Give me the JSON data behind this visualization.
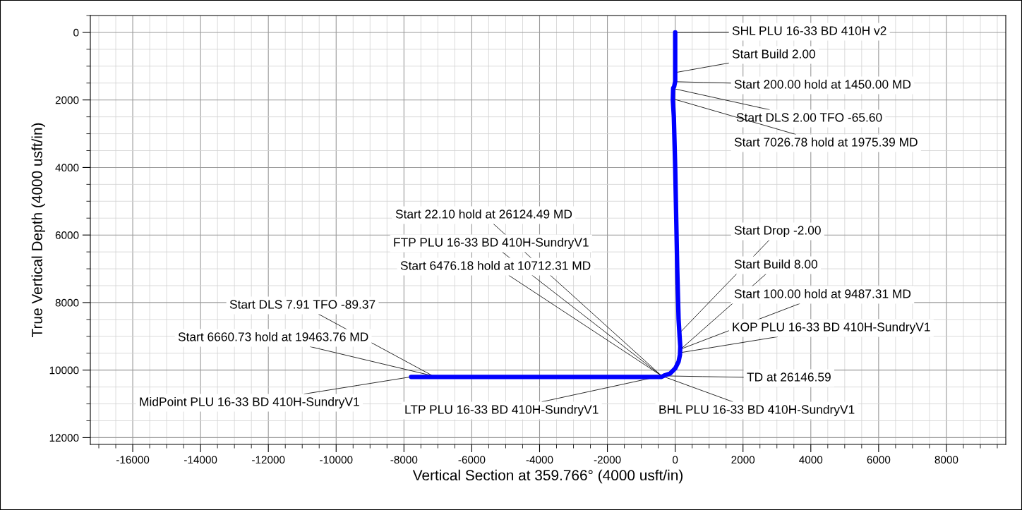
{
  "chart_data": {
    "type": "line",
    "xlabel": "Vertical Section at 359.766° (4000 usft/in)",
    "ylabel": "True Vertical Depth (4000 usft/in)",
    "xlim": [
      -17250,
      9750
    ],
    "ylim": [
      12200,
      -500
    ],
    "xticks": [
      -16000,
      -14000,
      -12000,
      -10000,
      -8000,
      -6000,
      -4000,
      -2000,
      0,
      2000,
      4000,
      6000,
      8000
    ],
    "yticks": [
      0,
      2000,
      4000,
      6000,
      8000,
      10000,
      12000
    ],
    "grid": true,
    "marker": "none",
    "line_style": "solid",
    "series": [
      {
        "color": "#0000ff",
        "x": [
          0,
          0,
          -30,
          -60,
          -70,
          -40,
          0,
          60,
          100,
          130,
          150,
          140,
          100,
          0,
          -150,
          -300,
          -400,
          -2000,
          -7790
        ],
        "values": [
          0,
          1450,
          1600,
          1650,
          2000,
          2500,
          4000,
          7000,
          8500,
          9000,
          9300,
          9550,
          9750,
          9950,
          10100,
          10150,
          10200,
          10200,
          10200
        ]
      }
    ],
    "annotations": [
      {
        "text": "SHL PLU 16-33 BD 410H v2",
        "x": 0,
        "y": 0
      },
      {
        "text": "Start Build 2.00",
        "x": 0,
        "y": 1190
      },
      {
        "text": "Start 200.00 hold at 1450.00 MD",
        "x": 0,
        "y": 1460
      },
      {
        "text": "Start DLS 2.00 TFO -65.60",
        "x": -20,
        "y": 1670
      },
      {
        "text": "Start 7026.78 hold at 1975.39 MD",
        "x": -20,
        "y": 1980
      },
      {
        "text": "Start 22.10 hold at 26124.49 MD",
        "x": -400,
        "y": 10170
      },
      {
        "text": "FTP PLU 16-33 BD 410H-SundryV1",
        "x": -400,
        "y": 10170
      },
      {
        "text": "Start 6476.18 hold at 10712.31 MD",
        "x": -400,
        "y": 10170
      },
      {
        "text": "Start Drop -2.00",
        "x": 130,
        "y": 8900
      },
      {
        "text": "Start Build 8.00",
        "x": 170,
        "y": 9375
      },
      {
        "text": "Start 100.00 hold at 9487.31 MD",
        "x": 170,
        "y": 9375
      },
      {
        "text": "KOP PLU 16-33 BD 410H-SundryV1",
        "x": 170,
        "y": 9480
      },
      {
        "text": "Start DLS 7.91 TFO -89.37",
        "x": -7150,
        "y": 10170
      },
      {
        "text": "Start 6660.73 hold at 19463.76 MD",
        "x": -7150,
        "y": 10170
      },
      {
        "text": "MidPoint PLU 16-33 BD 410H-SundryV1",
        "x": -7790,
        "y": 10200
      },
      {
        "text": "LTP PLU 16-33 BD 410H-SundryV1",
        "x": -400,
        "y": 10170
      },
      {
        "text": "BHL PLU 16-33 BD 410H-SundryV1",
        "x": -400,
        "y": 10170
      },
      {
        "text": "TD at 26146.59",
        "x": -400,
        "y": 10170
      }
    ]
  }
}
